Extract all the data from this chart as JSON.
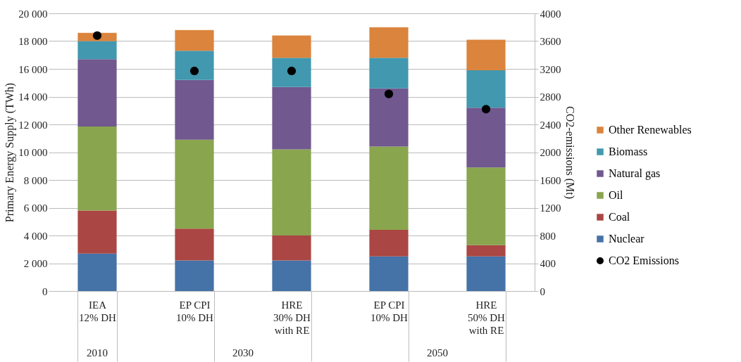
{
  "chart_data": {
    "type": "bar",
    "stacked": true,
    "categories": [
      "IEA\n12% DH",
      "EP CPI\n10% DH",
      "HRE\n30% DH\nwith RE",
      "EP CPI\n10% DH",
      "HRE\n50% DH\nwith RE"
    ],
    "series": [
      {
        "name": "Nuclear",
        "color": "#4572a7",
        "values": [
          2700,
          2200,
          2200,
          2500,
          2500
        ]
      },
      {
        "name": "Coal",
        "color": "#aa4643",
        "values": [
          3100,
          2300,
          1800,
          1900,
          800
        ]
      },
      {
        "name": "Oil",
        "color": "#89a54e",
        "values": [
          6050,
          6400,
          6200,
          6000,
          5600
        ]
      },
      {
        "name": "Natural gas",
        "color": "#71588f",
        "values": [
          4850,
          4300,
          4500,
          4200,
          4300
        ]
      },
      {
        "name": "Biomass",
        "color": "#4198af",
        "values": [
          1300,
          2100,
          2100,
          2200,
          2700
        ]
      },
      {
        "name": "Other Renewables",
        "color": "#db843d",
        "values": [
          600,
          1500,
          1600,
          2200,
          2200
        ]
      },
      {
        "name": "CO2 Emissions",
        "type": "scatter",
        "axis": "y2",
        "color": "#000000",
        "values": [
          3680,
          3170,
          3170,
          2840,
          2620
        ]
      }
    ],
    "ylabel": "Primary Energy Supply (TWh)",
    "y2label": "CO2-emissions (Mt)",
    "ylim": [
      0,
      20000
    ],
    "yticks": [
      0,
      {
        "value": 2000,
        "label": "2 000"
      },
      {
        "value": 4000,
        "label": "4 000"
      },
      {
        "value": 6000,
        "label": "6 000"
      },
      {
        "value": 8000,
        "label": "8 000"
      },
      {
        "value": 10000,
        "label": "10 000"
      },
      {
        "value": 12000,
        "label": "12 000"
      },
      {
        "value": 14000,
        "label": "14 000"
      },
      {
        "value": 16000,
        "label": "16 000"
      },
      {
        "value": 18000,
        "label": "18 000"
      },
      {
        "value": 20000,
        "label": "20 000"
      }
    ],
    "y2lim": [
      0,
      4000
    ],
    "y2ticks": [
      0,
      400,
      800,
      1200,
      1600,
      2000,
      2400,
      2800,
      3200,
      3600,
      4000
    ],
    "grid": "y",
    "legend": "right",
    "marker": "circle",
    "annotations": [
      "2010",
      "2030",
      "2050"
    ]
  }
}
